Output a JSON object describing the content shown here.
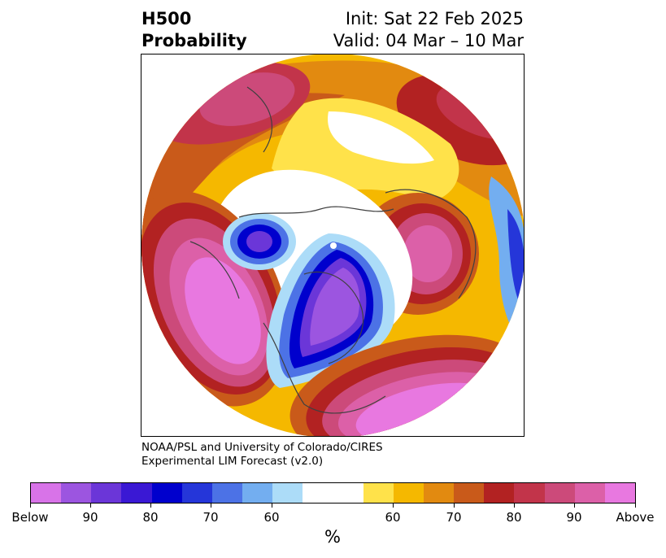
{
  "header": {
    "title_line1": "H500",
    "title_line2": "Probability",
    "init": "Init: Sat 22 Feb 2025",
    "valid": "Valid: 04 Mar – 10 Mar"
  },
  "credit": {
    "line1": "NOAA/PSL and University of Colorado/CIRES",
    "line2": "Experimental LIM Forecast (v2.0)"
  },
  "colorbar": {
    "unit": "%",
    "colors": [
      "#d873e8",
      "#9c55e0",
      "#6b36d8",
      "#3a18d4",
      "#0000cd",
      "#2536d9",
      "#4c72e6",
      "#73aef0",
      "#acdcf8",
      "#ffffff",
      "#ffe24a",
      "#f5b800",
      "#e28a10",
      "#c95a1a",
      "#b22222",
      "#c2344a",
      "#cc4a7a",
      "#dc60a8",
      "#e878e0"
    ],
    "labels": [
      "Below",
      "90",
      "80",
      "70",
      "60",
      "60",
      "70",
      "80",
      "90",
      "Above"
    ]
  },
  "legend_map": {
    "below_color": "#9c55e0",
    "above_color": "#c2344a"
  }
}
